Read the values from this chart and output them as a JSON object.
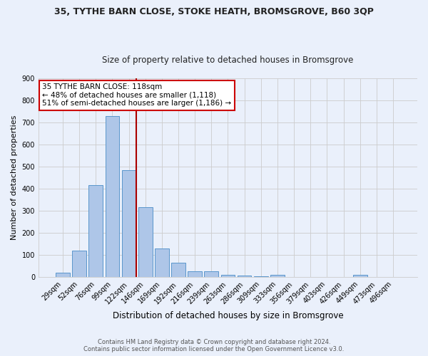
{
  "title1": "35, TYTHE BARN CLOSE, STOKE HEATH, BROMSGROVE, B60 3QP",
  "title2": "Size of property relative to detached houses in Bromsgrove",
  "xlabel": "Distribution of detached houses by size in Bromsgrove",
  "ylabel": "Number of detached properties",
  "bar_labels": [
    "29sqm",
    "52sqm",
    "76sqm",
    "99sqm",
    "122sqm",
    "146sqm",
    "169sqm",
    "192sqm",
    "216sqm",
    "239sqm",
    "263sqm",
    "286sqm",
    "309sqm",
    "333sqm",
    "356sqm",
    "379sqm",
    "403sqm",
    "426sqm",
    "449sqm",
    "473sqm",
    "496sqm"
  ],
  "bar_values": [
    20,
    120,
    415,
    730,
    485,
    315,
    130,
    63,
    27,
    25,
    10,
    5,
    2,
    8,
    0,
    0,
    0,
    0,
    8,
    0,
    0
  ],
  "bar_color": "#aec6e8",
  "bar_edge_color": "#5a96cc",
  "vline_pos": 4.45,
  "annotation_text1": "35 TYTHE BARN CLOSE: 118sqm",
  "annotation_text2": "← 48% of detached houses are smaller (1,118)",
  "annotation_text3": "51% of semi-detached houses are larger (1,186) →",
  "annotation_box_color": "#ffffff",
  "annotation_box_edge": "#cc0000",
  "vline_color": "#aa0000",
  "grid_color": "#cccccc",
  "bg_color": "#eaf0fb",
  "footer1": "Contains HM Land Registry data © Crown copyright and database right 2024.",
  "footer2": "Contains public sector information licensed under the Open Government Licence v3.0.",
  "ylim": [
    0,
    900
  ],
  "title_fontsize": 9,
  "subtitle_fontsize": 8.5,
  "ylabel_fontsize": 8,
  "xlabel_fontsize": 8.5,
  "tick_fontsize": 7,
  "annotation_fontsize": 7.5,
  "footer_fontsize": 6
}
